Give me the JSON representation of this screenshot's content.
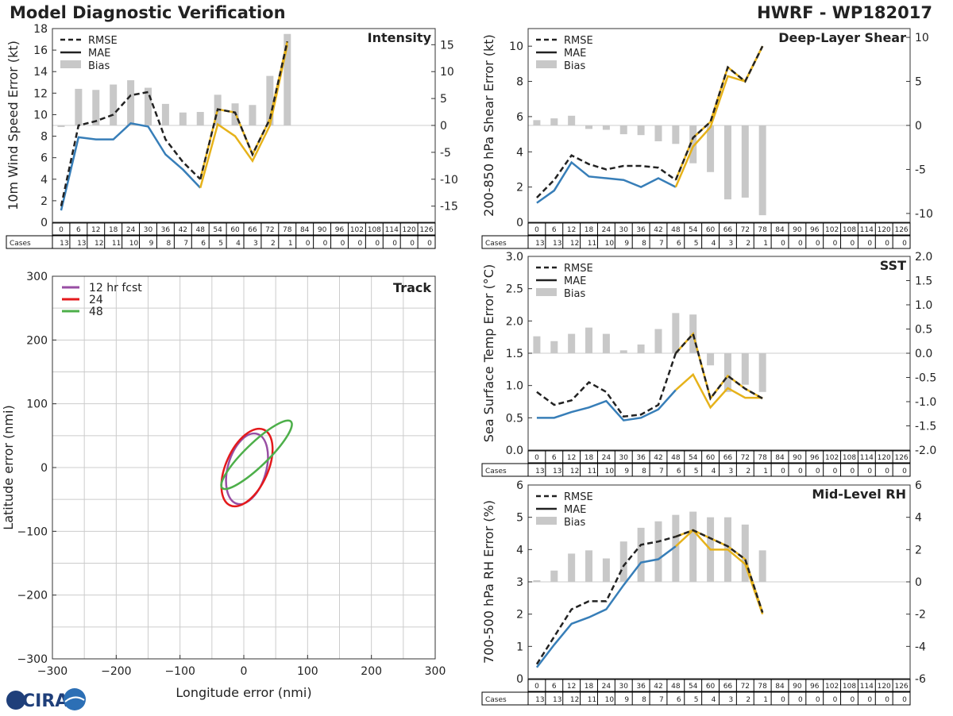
{
  "header": {
    "title_left": "Model Diagnostic Verification",
    "title_right": "HWRF - WP182017"
  },
  "logo": {
    "text": "CIRA"
  },
  "chart_data": [
    {
      "id": "intensity",
      "type": "line",
      "title": "Intensity",
      "ylabel": "10m Wind Speed Error (kt)",
      "ylim": [
        0,
        18
      ],
      "yticks": [
        0,
        2,
        4,
        6,
        8,
        10,
        12,
        14,
        16,
        18
      ],
      "y2lim": [
        -18,
        18
      ],
      "y2ticks": [
        -15,
        -10,
        -5,
        0,
        5,
        10,
        15
      ],
      "legend": [
        "RMSE",
        "MAE",
        "Bias"
      ],
      "hours": [
        0,
        6,
        12,
        18,
        24,
        30,
        36,
        42,
        48,
        54,
        60,
        66,
        72,
        78,
        84,
        90,
        96,
        102,
        108,
        114,
        120,
        126
      ],
      "cases": [
        13,
        13,
        12,
        11,
        10,
        9,
        8,
        7,
        6,
        5,
        4,
        3,
        2,
        1,
        0,
        0,
        0,
        0,
        0,
        0,
        0,
        0
      ],
      "cases_label": "Cases",
      "rmse": [
        1.5,
        9.0,
        9.4,
        10.0,
        11.8,
        12.1,
        7.7,
        5.6,
        4.0,
        10.5,
        10.2,
        6.3,
        9.6,
        16.8
      ],
      "mae": [
        1.1,
        7.9,
        7.7,
        7.7,
        9.2,
        8.9,
        6.3,
        4.9,
        3.2,
        9.1,
        8.0,
        5.7,
        9.0,
        16.5
      ],
      "bias": [
        -0.3,
        6.8,
        6.6,
        7.6,
        8.4,
        7.0,
        4.0,
        2.4,
        2.5,
        5.7,
        4.1,
        3.8,
        9.2,
        17.0
      ]
    },
    {
      "id": "shear",
      "type": "line",
      "title": "Deep-Layer Shear",
      "ylabel": "200-850 hPa Shear Error (kt)",
      "ylim": [
        0,
        11
      ],
      "yticks": [
        0,
        2,
        4,
        6,
        8,
        10
      ],
      "y2lim": [
        -11,
        11
      ],
      "y2ticks": [
        -10,
        -5,
        0,
        5,
        10
      ],
      "legend": [
        "RMSE",
        "MAE",
        "Bias"
      ],
      "hours": [
        0,
        6,
        12,
        18,
        24,
        30,
        36,
        42,
        48,
        54,
        60,
        66,
        72,
        78,
        84,
        90,
        96,
        102,
        108,
        114,
        120,
        126
      ],
      "cases": [
        13,
        13,
        12,
        11,
        10,
        9,
        8,
        7,
        6,
        5,
        4,
        3,
        2,
        1,
        0,
        0,
        0,
        0,
        0,
        0,
        0,
        0
      ],
      "cases_label": "Cases",
      "rmse": [
        1.4,
        2.4,
        3.8,
        3.3,
        3.0,
        3.2,
        3.2,
        3.1,
        2.4,
        4.8,
        5.7,
        8.8,
        8.0,
        10.0
      ],
      "mae": [
        1.1,
        1.8,
        3.4,
        2.6,
        2.5,
        2.4,
        2.0,
        2.5,
        2.0,
        4.3,
        5.4,
        8.3,
        8.0,
        10.0
      ],
      "bias": [
        0.6,
        0.8,
        1.1,
        -0.4,
        -0.5,
        -1.0,
        -1.1,
        -1.8,
        -2.1,
        -4.3,
        -5.3,
        -8.4,
        -8.2,
        -10.2
      ]
    },
    {
      "id": "sst",
      "type": "line",
      "title": "SST",
      "ylabel": "Sea Surface Temp Error (°C)",
      "ylim": [
        0,
        3.0
      ],
      "yticks": [
        0.0,
        0.5,
        1.0,
        1.5,
        2.0,
        2.5,
        3.0
      ],
      "y2lim": [
        -2.0,
        2.0
      ],
      "y2ticks": [
        -2.0,
        -1.5,
        -1.0,
        -0.5,
        0.0,
        0.5,
        1.0,
        1.5,
        2.0
      ],
      "legend": [
        "RMSE",
        "MAE",
        "Bias"
      ],
      "hours": [
        0,
        6,
        12,
        18,
        24,
        30,
        36,
        42,
        48,
        54,
        60,
        66,
        72,
        78,
        84,
        90,
        96,
        102,
        108,
        114,
        120,
        126
      ],
      "cases": [
        13,
        13,
        12,
        11,
        10,
        9,
        8,
        7,
        6,
        5,
        4,
        3,
        2,
        1,
        0,
        0,
        0,
        0,
        0,
        0,
        0,
        0
      ],
      "cases_label": "Cases",
      "rmse": [
        0.9,
        0.7,
        0.77,
        1.05,
        0.9,
        0.52,
        0.55,
        0.7,
        1.5,
        1.8,
        0.8,
        1.15,
        0.95,
        0.8
      ],
      "mae": [
        0.5,
        0.5,
        0.59,
        0.66,
        0.76,
        0.46,
        0.5,
        0.63,
        0.93,
        1.17,
        0.66,
        0.96,
        0.81,
        0.81
      ],
      "bias": [
        0.35,
        0.25,
        0.4,
        0.53,
        0.4,
        0.06,
        0.18,
        0.5,
        0.83,
        0.8,
        -0.25,
        -0.8,
        -0.65,
        -0.8
      ]
    },
    {
      "id": "rh",
      "type": "line",
      "title": "Mid-Level RH",
      "ylabel": "700-500 hPa RH Error (%)",
      "ylim": [
        0,
        6
      ],
      "yticks": [
        0,
        1,
        2,
        3,
        4,
        5,
        6
      ],
      "y2lim": [
        -6,
        6
      ],
      "y2ticks": [
        -6,
        -4,
        -2,
        0,
        2,
        4,
        6
      ],
      "legend": [
        "RMSE",
        "MAE",
        "Bias"
      ],
      "hours": [
        0,
        6,
        12,
        18,
        24,
        30,
        36,
        42,
        48,
        54,
        60,
        66,
        72,
        78,
        84,
        90,
        96,
        102,
        108,
        114,
        120,
        126
      ],
      "cases": [
        13,
        13,
        12,
        11,
        10,
        9,
        8,
        7,
        6,
        5,
        4,
        3,
        2,
        1,
        0,
        0,
        0,
        0,
        0,
        0,
        0,
        0
      ],
      "cases_label": "Cases",
      "rmse": [
        0.45,
        1.3,
        2.15,
        2.4,
        2.4,
        3.5,
        4.15,
        4.25,
        4.4,
        4.6,
        4.35,
        4.1,
        3.7,
        2.05
      ],
      "mae": [
        0.35,
        1.05,
        1.7,
        1.9,
        2.15,
        2.9,
        3.6,
        3.7,
        4.1,
        4.6,
        4.0,
        4.0,
        3.55,
        2.0
      ],
      "bias": [
        0.1,
        0.7,
        1.75,
        1.95,
        1.45,
        2.5,
        3.35,
        3.75,
        4.15,
        4.35,
        4.0,
        4.0,
        3.55,
        1.95
      ]
    },
    {
      "id": "track",
      "type": "scatter",
      "title": "Track",
      "xlabel": "Longitude error (nmi)",
      "ylabel": "Latitude error (nmi)",
      "xlim": [
        -300,
        300
      ],
      "ylim": [
        -300,
        300
      ],
      "xticks": [
        -300,
        -200,
        -100,
        0,
        100,
        200,
        300
      ],
      "yticks": [
        -300,
        -200,
        -100,
        0,
        100,
        200,
        300
      ],
      "ellipses": [
        {
          "name": "12 hr fcst",
          "color": "#984ea3",
          "cx": 5,
          "cy": -2,
          "rx": 30,
          "ry": 57,
          "angle": 16
        },
        {
          "name": "24",
          "color": "#e41a1c",
          "cx": 5,
          "cy": 0,
          "rx": 33,
          "ry": 65,
          "angle": 24
        },
        {
          "name": "48",
          "color": "#4daf4a",
          "cx": 20,
          "cy": 20,
          "rx": 18,
          "ry": 75,
          "angle": 46
        }
      ]
    }
  ],
  "colors": {
    "rmse": "#222222",
    "mae": "#377eb8",
    "late": "#e6b21a",
    "bias": "#c8c8c8",
    "grid": "#cccccc",
    "border": "#333333"
  }
}
